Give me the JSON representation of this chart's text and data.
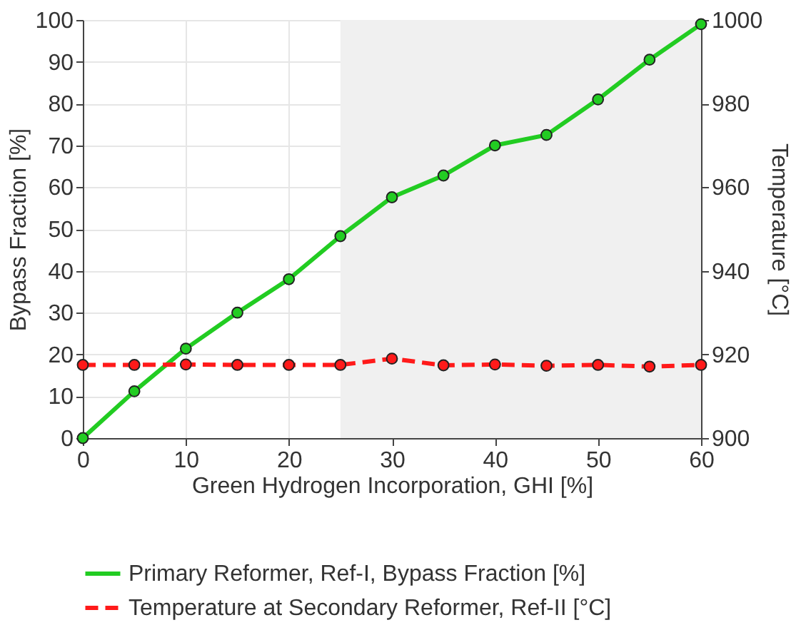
{
  "chart_data": {
    "type": "line",
    "xlabel": "Green Hydrogen Incorporation, GHI [%]",
    "ylabel": "Bypass Fraction [%]",
    "y2label": "Temperature [°C]",
    "x": [
      0,
      5,
      10,
      15,
      20,
      25,
      30,
      35,
      40,
      45,
      50,
      55,
      60
    ],
    "series": [
      {
        "name": "Primary Reformer, Ref-I, Bypass Fraction [%]",
        "color": "#22cc22",
        "line_style": "solid",
        "values": [
          0,
          11.2,
          21.4,
          30,
          38,
          48.3,
          57.6,
          62.8,
          70,
          72.5,
          81,
          90.5,
          99
        ]
      },
      {
        "name": "Temperature at Secondary Reformer, Ref-II [°C]",
        "color": "#ff1a1a",
        "line_style": "dashed",
        "axis": "y2",
        "values": [
          917.5,
          917.5,
          917.6,
          917.5,
          917.5,
          917.5,
          919,
          917.4,
          917.6,
          917.3,
          917.5,
          917.1,
          917.5
        ]
      }
    ],
    "xlim": [
      0,
      60
    ],
    "xticks": [
      0,
      10,
      20,
      30,
      40,
      50,
      60
    ],
    "ylim": [
      0,
      100
    ],
    "yticks": [
      0,
      10,
      20,
      30,
      40,
      50,
      60,
      70,
      80,
      90,
      100
    ],
    "y2lim": [
      900,
      1000
    ],
    "y2ticks": [
      900,
      920,
      940,
      960,
      980,
      1000
    ],
    "bands": [
      {
        "axis": "x",
        "from": 25,
        "to": 60,
        "color": "#f0f0f0"
      }
    ],
    "grid": true,
    "marker": "circle",
    "legend": "bottom"
  }
}
